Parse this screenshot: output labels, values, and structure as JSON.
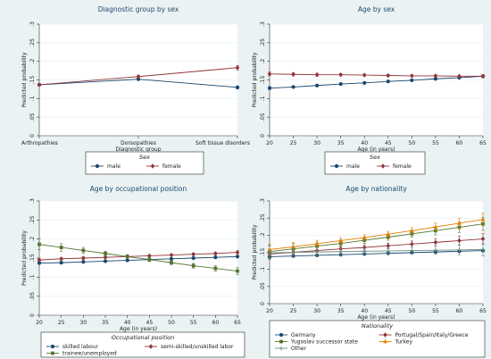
{
  "colors": {
    "male": "#1a476f",
    "female": "#90353b",
    "skilled": "#1a476f",
    "semi": "#90353b",
    "trainee": "#55752f",
    "germany": "#1a476f",
    "southern": "#90353b",
    "yugoslav": "#55752f",
    "turkey": "#e37e00",
    "other": "#6e8e84"
  },
  "chart_data": [
    {
      "type": "line",
      "title": "Diagnostic group by sex",
      "xlabel": "Diagnostic group",
      "ylabel": "Predicted probability",
      "x_type": "category",
      "categories": [
        "Arthropathies",
        "Dorsopathies",
        "Soft tissue disorders"
      ],
      "ylim": [
        0,
        0.3
      ],
      "yticks": [
        0,
        0.05,
        0.1,
        0.15,
        0.2,
        0.25,
        0.3
      ],
      "ytick_labels": [
        "0",
        ".05",
        ".1",
        ".15",
        ".2",
        ".25",
        ".3"
      ],
      "legend_title": "Sex",
      "legend_columns": 2,
      "series": [
        {
          "name": "male",
          "color_key": "male",
          "marker": "circle",
          "values": [
            0.137,
            0.152,
            0.13
          ],
          "ci": [
            0.003,
            0.003,
            0.004
          ]
        },
        {
          "name": "female",
          "color_key": "female",
          "marker": "diamond",
          "values": [
            0.137,
            0.159,
            0.183
          ],
          "ci": [
            0.003,
            0.004,
            0.006
          ]
        }
      ]
    },
    {
      "type": "line",
      "title": "Age by sex",
      "xlabel": "Age (in years)",
      "ylabel": "Predicted probability",
      "x_type": "numeric",
      "x": [
        20,
        25,
        30,
        35,
        40,
        45,
        50,
        55,
        60,
        65
      ],
      "xlim": [
        20,
        65
      ],
      "xticks": [
        20,
        25,
        30,
        35,
        40,
        45,
        50,
        55,
        60,
        65
      ],
      "ylim": [
        0,
        0.3
      ],
      "yticks": [
        0,
        0.05,
        0.1,
        0.15,
        0.2,
        0.25,
        0.3
      ],
      "ytick_labels": [
        "0",
        ".05",
        ".1",
        ".15",
        ".2",
        ".25",
        ".3"
      ],
      "legend_title": "Sex",
      "legend_columns": 2,
      "series": [
        {
          "name": "male",
          "color_key": "male",
          "marker": "circle",
          "values": [
            0.128,
            0.131,
            0.135,
            0.139,
            0.142,
            0.146,
            0.149,
            0.153,
            0.156,
            0.16
          ],
          "ci": [
            0.004,
            0.003,
            0.003,
            0.002,
            0.002,
            0.002,
            0.002,
            0.002,
            0.003,
            0.003
          ]
        },
        {
          "name": "female",
          "color_key": "female",
          "marker": "diamond",
          "values": [
            0.166,
            0.165,
            0.164,
            0.164,
            0.163,
            0.162,
            0.161,
            0.161,
            0.16,
            0.16
          ],
          "ci": [
            0.005,
            0.004,
            0.004,
            0.003,
            0.003,
            0.003,
            0.003,
            0.003,
            0.003,
            0.004
          ]
        }
      ]
    },
    {
      "type": "line",
      "title": "Age by occupational position",
      "xlabel": "Age (in years)",
      "ylabel": "Predicted probability",
      "x_type": "numeric",
      "x": [
        20,
        25,
        30,
        35,
        40,
        45,
        50,
        55,
        60,
        65
      ],
      "xlim": [
        20,
        65
      ],
      "xticks": [
        20,
        25,
        30,
        35,
        40,
        45,
        50,
        55,
        60,
        65
      ],
      "ylim": [
        0,
        0.3
      ],
      "yticks": [
        0,
        0.05,
        0.1,
        0.15,
        0.2,
        0.25,
        0.3
      ],
      "ytick_labels": [
        "0",
        ".05",
        ".1",
        ".15",
        ".2",
        ".25",
        ".3"
      ],
      "legend_title": "Occupational position",
      "legend_columns": 2,
      "series": [
        {
          "name": "skilled labour",
          "color_key": "skilled",
          "marker": "circle",
          "values": [
            0.137,
            0.138,
            0.14,
            0.142,
            0.144,
            0.146,
            0.148,
            0.15,
            0.152,
            0.154
          ],
          "ci": [
            0.003,
            0.003,
            0.002,
            0.002,
            0.002,
            0.002,
            0.002,
            0.002,
            0.003,
            0.003
          ]
        },
        {
          "name": "semi-skilled/unskilled labor",
          "color_key": "semi",
          "marker": "diamond",
          "values": [
            0.145,
            0.148,
            0.15,
            0.152,
            0.154,
            0.156,
            0.158,
            0.16,
            0.162,
            0.165
          ],
          "ci": [
            0.004,
            0.003,
            0.003,
            0.002,
            0.002,
            0.002,
            0.002,
            0.003,
            0.003,
            0.004
          ]
        },
        {
          "name": "trainee/unemployed",
          "color_key": "trainee",
          "marker": "square",
          "values": [
            0.186,
            0.178,
            0.17,
            0.162,
            0.154,
            0.146,
            0.138,
            0.13,
            0.123,
            0.116
          ],
          "ci": [
            0.014,
            0.01,
            0.008,
            0.006,
            0.005,
            0.005,
            0.005,
            0.006,
            0.007,
            0.009
          ]
        }
      ]
    },
    {
      "type": "line",
      "title": "Age by nationality",
      "xlabel": "Age (in years)",
      "ylabel": "Predicted probability",
      "x_type": "numeric",
      "x": [
        20,
        25,
        30,
        35,
        40,
        45,
        50,
        55,
        60,
        65
      ],
      "xlim": [
        20,
        65
      ],
      "xticks": [
        20,
        25,
        30,
        35,
        40,
        45,
        50,
        55,
        60,
        65
      ],
      "ylim": [
        0,
        0.3
      ],
      "yticks": [
        0,
        0.05,
        0.1,
        0.15,
        0.2,
        0.25,
        0.3
      ],
      "ytick_labels": [
        "0",
        ".05",
        ".1",
        ".15",
        ".2",
        ".25",
        ".3"
      ],
      "legend_title": "Nationality",
      "legend_columns": 2,
      "series": [
        {
          "name": "Germany",
          "color_key": "germany",
          "marker": "circle",
          "values": [
            0.137,
            0.139,
            0.141,
            0.143,
            0.145,
            0.147,
            0.149,
            0.151,
            0.153,
            0.155
          ],
          "ci": [
            0.004,
            0.003,
            0.003,
            0.002,
            0.002,
            0.002,
            0.002,
            0.002,
            0.003,
            0.003
          ]
        },
        {
          "name": "Portugal/Spain/Italy/Greece",
          "color_key": "southern",
          "marker": "diamond",
          "values": [
            0.145,
            0.15,
            0.155,
            0.16,
            0.164,
            0.169,
            0.174,
            0.179,
            0.184,
            0.189
          ],
          "ci": [
            0.014,
            0.012,
            0.01,
            0.009,
            0.008,
            0.008,
            0.009,
            0.011,
            0.013,
            0.016
          ]
        },
        {
          "name": "Yugoslav successor state",
          "color_key": "yugoslav",
          "marker": "square",
          "values": [
            0.152,
            0.16,
            0.168,
            0.176,
            0.185,
            0.194,
            0.204,
            0.213,
            0.223,
            0.233
          ],
          "ci": [
            0.018,
            0.015,
            0.012,
            0.01,
            0.009,
            0.009,
            0.01,
            0.012,
            0.015,
            0.019
          ]
        },
        {
          "name": "Turkey",
          "color_key": "turkey",
          "marker": "triangle",
          "values": [
            0.158,
            0.166,
            0.175,
            0.184,
            0.193,
            0.203,
            0.213,
            0.224,
            0.235,
            0.246
          ],
          "ci": [
            0.015,
            0.012,
            0.01,
            0.009,
            0.008,
            0.008,
            0.009,
            0.011,
            0.014,
            0.018
          ]
        },
        {
          "name": "Other",
          "color_key": "other",
          "marker": "cross",
          "values": [
            0.148,
            0.15,
            0.151,
            0.152,
            0.153,
            0.154,
            0.155,
            0.156,
            0.157,
            0.158
          ],
          "ci": [
            0.02,
            0.015,
            0.012,
            0.01,
            0.009,
            0.009,
            0.01,
            0.012,
            0.015,
            0.019
          ]
        }
      ]
    }
  ]
}
